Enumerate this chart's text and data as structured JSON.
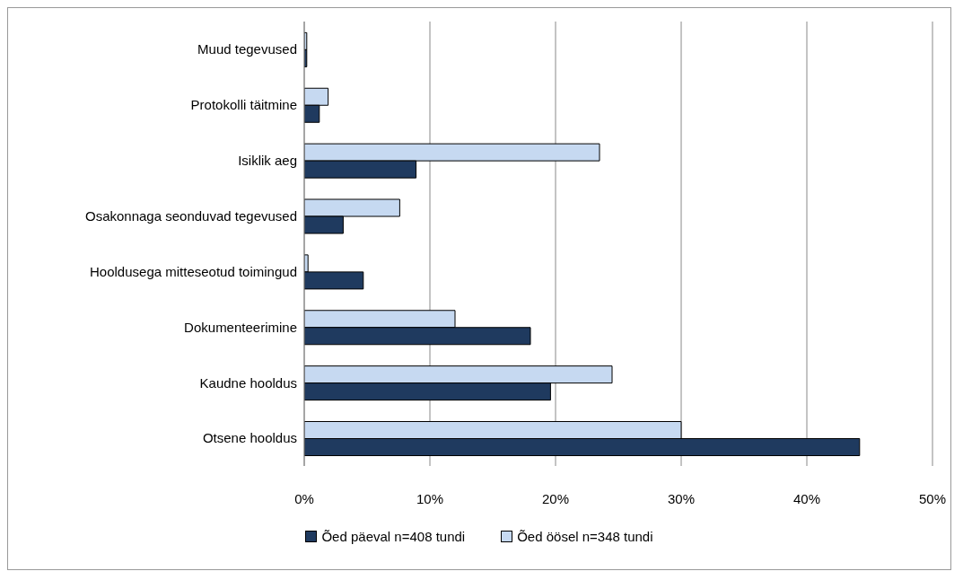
{
  "chart_data": {
    "type": "bar",
    "orientation": "horizontal",
    "categories": [
      "Muud tegevused",
      "Protokolli täitmine",
      "Isiklik aeg",
      "Osakonnaga seonduvad tegevused",
      "Hooldusega mitteseotud toimingud",
      "Dokumenteerimine",
      "Kaudne hooldus",
      "Otsene hooldus"
    ],
    "series": [
      {
        "name": "Õed päeval n=408 tundi",
        "color": "#1f3a5f",
        "values": [
          0.2,
          1.2,
          8.9,
          3.1,
          4.7,
          18.0,
          19.6,
          44.2
        ]
      },
      {
        "name": "Õed öösel n=348 tundi",
        "color": "#c6d9f1",
        "values": [
          0.2,
          1.9,
          23.5,
          7.6,
          0.3,
          12.0,
          24.5,
          30.0
        ]
      }
    ],
    "xlim": [
      0,
      50
    ],
    "xticks": [
      {
        "value": 0,
        "label": "0%"
      },
      {
        "value": 10,
        "label": "10%"
      },
      {
        "value": 20,
        "label": "20%"
      },
      {
        "value": 30,
        "label": "30%"
      },
      {
        "value": 40,
        "label": "40%"
      },
      {
        "value": 50,
        "label": "50%"
      }
    ],
    "grid": "x",
    "legend": "bottom"
  }
}
